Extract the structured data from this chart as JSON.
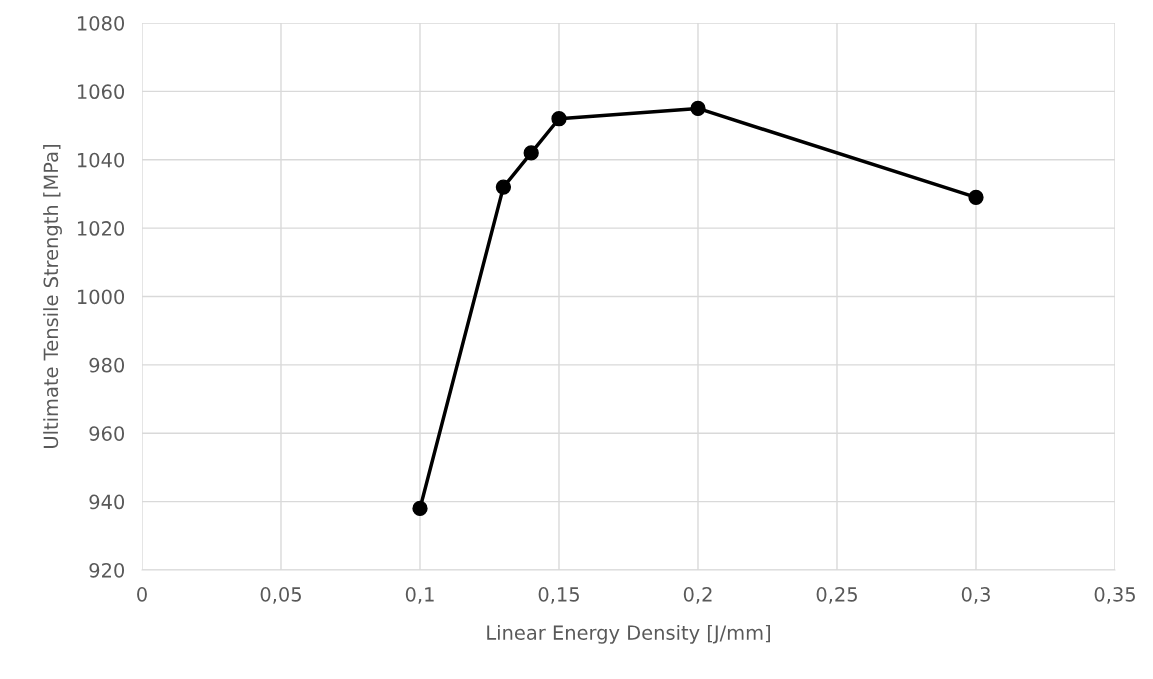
{
  "chart_data": {
    "type": "line",
    "xlabel": "Linear Energy Density [J/mm]",
    "ylabel": "Ultimate Tensile Strength [MPa]",
    "x": [
      0.1,
      0.13,
      0.14,
      0.15,
      0.2,
      0.3
    ],
    "series": [
      {
        "color": "#000000",
        "values": [
          938,
          1032,
          1042,
          1052,
          1055,
          1029
        ]
      }
    ],
    "xlim": [
      0,
      0.35
    ],
    "xticks": [
      0,
      {
        "value": 0.05,
        "label": "0,05"
      },
      {
        "value": 0.1,
        "label": "0,1"
      },
      {
        "value": 0.15,
        "label": "0,15"
      },
      {
        "value": 0.2,
        "label": "0,2"
      },
      {
        "value": 0.25,
        "label": "0,25"
      },
      {
        "value": 0.3,
        "label": "0,3"
      },
      {
        "value": 0.35,
        "label": "0,35"
      }
    ],
    "ylim": [
      920,
      1080
    ],
    "yticks": [
      920,
      940,
      960,
      980,
      1000,
      1020,
      1040,
      1060,
      1080
    ],
    "grid": true,
    "marker": "circle",
    "line_style": "solid"
  }
}
